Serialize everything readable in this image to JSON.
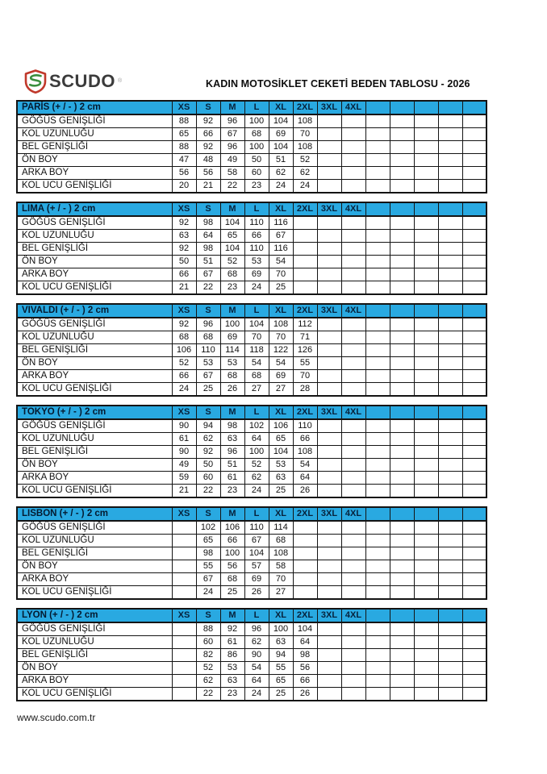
{
  "brand": {
    "name": "SCUDO",
    "registered_mark": "®",
    "logo_icon": "shield-s-icon",
    "logo_red": "#c0392b",
    "logo_green": "#3a8f3e"
  },
  "header": {
    "title": "KADIN MOTOSİKLET CEKETİ BEDEN TABLOSU - 2026"
  },
  "footer": {
    "url": "www.scudo.com.tr"
  },
  "colors": {
    "header_blue": "#29a9e1",
    "border_black": "#141414",
    "header_text": "#06223c"
  },
  "size_columns": [
    "XS",
    "S",
    "M",
    "L",
    "XL",
    "2XL",
    "3XL",
    "4XL",
    "",
    "",
    "",
    "",
    ""
  ],
  "row_labels": [
    "GÖĞÜS GENİŞLİĞİ",
    "KOL UZUNLUĞU",
    "BEL GENİŞLİĞİ",
    "ÖN BOY",
    "ARKA BOY",
    "KOL UCU GENİŞLİĞİ"
  ],
  "tables": [
    {
      "name": "PARİS (+ / - ) 2 cm",
      "slug": "paris",
      "rows": [
        [
          "88",
          "92",
          "96",
          "100",
          "104",
          "108",
          "",
          "",
          "",
          "",
          "",
          "",
          ""
        ],
        [
          "65",
          "66",
          "67",
          "68",
          "69",
          "70",
          "",
          "",
          "",
          "",
          "",
          "",
          ""
        ],
        [
          "88",
          "92",
          "96",
          "100",
          "104",
          "108",
          "",
          "",
          "",
          "",
          "",
          "",
          ""
        ],
        [
          "47",
          "48",
          "49",
          "50",
          "51",
          "52",
          "",
          "",
          "",
          "",
          "",
          "",
          ""
        ],
        [
          "56",
          "56",
          "58",
          "60",
          "62",
          "62",
          "",
          "",
          "",
          "",
          "",
          "",
          ""
        ],
        [
          "20",
          "21",
          "22",
          "23",
          "24",
          "24",
          "",
          "",
          "",
          "",
          "",
          "",
          ""
        ]
      ]
    },
    {
      "name": "LIMA (+ / - ) 2 cm",
      "slug": "lima",
      "rows": [
        [
          "92",
          "98",
          "104",
          "110",
          "116",
          "",
          "",
          "",
          "",
          "",
          "",
          "",
          ""
        ],
        [
          "63",
          "64",
          "65",
          "66",
          "67",
          "",
          "",
          "",
          "",
          "",
          "",
          "",
          ""
        ],
        [
          "92",
          "98",
          "104",
          "110",
          "116",
          "",
          "",
          "",
          "",
          "",
          "",
          "",
          ""
        ],
        [
          "50",
          "51",
          "52",
          "53",
          "54",
          "",
          "",
          "",
          "",
          "",
          "",
          "",
          ""
        ],
        [
          "66",
          "67",
          "68",
          "69",
          "70",
          "",
          "",
          "",
          "",
          "",
          "",
          "",
          ""
        ],
        [
          "21",
          "22",
          "23",
          "24",
          "25",
          "",
          "",
          "",
          "",
          "",
          "",
          "",
          ""
        ]
      ]
    },
    {
      "name": "VIVALDI (+ / - ) 2 cm",
      "slug": "vivaldi",
      "rows": [
        [
          "92",
          "96",
          "100",
          "104",
          "108",
          "112",
          "",
          "",
          "",
          "",
          "",
          "",
          ""
        ],
        [
          "68",
          "68",
          "69",
          "70",
          "70",
          "71",
          "",
          "",
          "",
          "",
          "",
          "",
          ""
        ],
        [
          "106",
          "110",
          "114",
          "118",
          "122",
          "126",
          "",
          "",
          "",
          "",
          "",
          "",
          ""
        ],
        [
          "52",
          "53",
          "53",
          "54",
          "54",
          "55",
          "",
          "",
          "",
          "",
          "",
          "",
          ""
        ],
        [
          "66",
          "67",
          "68",
          "68",
          "69",
          "70",
          "",
          "",
          "",
          "",
          "",
          "",
          ""
        ],
        [
          "24",
          "25",
          "26",
          "27",
          "27",
          "28",
          "",
          "",
          "",
          "",
          "",
          "",
          ""
        ]
      ]
    },
    {
      "name": "TOKYO (+ / - ) 2 cm",
      "slug": "tokyo",
      "rows": [
        [
          "90",
          "94",
          "98",
          "102",
          "106",
          "110",
          "",
          "",
          "",
          "",
          "",
          "",
          ""
        ],
        [
          "61",
          "62",
          "63",
          "64",
          "65",
          "66",
          "",
          "",
          "",
          "",
          "",
          "",
          ""
        ],
        [
          "90",
          "92",
          "96",
          "100",
          "104",
          "108",
          "",
          "",
          "",
          "",
          "",
          "",
          ""
        ],
        [
          "49",
          "50",
          "51",
          "52",
          "53",
          "54",
          "",
          "",
          "",
          "",
          "",
          "",
          ""
        ],
        [
          "59",
          "60",
          "61",
          "62",
          "63",
          "64",
          "",
          "",
          "",
          "",
          "",
          "",
          ""
        ],
        [
          "21",
          "22",
          "23",
          "24",
          "25",
          "26",
          "",
          "",
          "",
          "",
          "",
          "",
          ""
        ]
      ]
    },
    {
      "name": "LISBON (+ / - ) 2 cm",
      "slug": "lisbon",
      "rows": [
        [
          "",
          "102",
          "106",
          "110",
          "114",
          "",
          "",
          "",
          "",
          "",
          "",
          "",
          ""
        ],
        [
          "",
          "65",
          "66",
          "67",
          "68",
          "",
          "",
          "",
          "",
          "",
          "",
          "",
          ""
        ],
        [
          "",
          "98",
          "100",
          "104",
          "108",
          "",
          "",
          "",
          "",
          "",
          "",
          "",
          ""
        ],
        [
          "",
          "55",
          "56",
          "57",
          "58",
          "",
          "",
          "",
          "",
          "",
          "",
          "",
          ""
        ],
        [
          "",
          "67",
          "68",
          "69",
          "70",
          "",
          "",
          "",
          "",
          "",
          "",
          "",
          ""
        ],
        [
          "",
          "24",
          "25",
          "26",
          "27",
          "",
          "",
          "",
          "",
          "",
          "",
          "",
          ""
        ]
      ]
    },
    {
      "name": "LYON (+ / - ) 2 cm",
      "slug": "lyon",
      "rows": [
        [
          "",
          "88",
          "92",
          "96",
          "100",
          "104",
          "",
          "",
          "",
          "",
          "",
          "",
          ""
        ],
        [
          "",
          "60",
          "61",
          "62",
          "63",
          "64",
          "",
          "",
          "",
          "",
          "",
          "",
          ""
        ],
        [
          "",
          "82",
          "86",
          "90",
          "94",
          "98",
          "",
          "",
          "",
          "",
          "",
          "",
          ""
        ],
        [
          "",
          "52",
          "53",
          "54",
          "55",
          "56",
          "",
          "",
          "",
          "",
          "",
          "",
          ""
        ],
        [
          "",
          "62",
          "63",
          "64",
          "65",
          "66",
          "",
          "",
          "",
          "",
          "",
          "",
          ""
        ],
        [
          "",
          "22",
          "23",
          "24",
          "25",
          "26",
          "",
          "",
          "",
          "",
          "",
          "",
          ""
        ]
      ]
    }
  ]
}
